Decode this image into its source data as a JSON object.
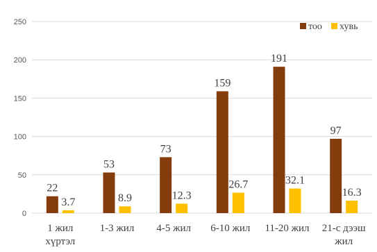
{
  "chart_data": {
    "type": "bar",
    "title": "",
    "xlabel": "",
    "ylabel": "",
    "ylim": [
      0,
      250
    ],
    "yticks": [
      0,
      50,
      100,
      150,
      200,
      250
    ],
    "grid": true,
    "legend_position": "top-right",
    "categories": [
      [
        "1 жил",
        "хүртэл"
      ],
      [
        "1-3 жил"
      ],
      [
        "4-5 жил"
      ],
      [
        "6-10 жил"
      ],
      [
        "11-20 жил"
      ],
      [
        "21-с дээш",
        "жил"
      ]
    ],
    "series": [
      {
        "name": "тоо",
        "color": "#843C0C",
        "values": [
          22,
          53,
          73,
          159,
          191,
          97
        ]
      },
      {
        "name": "хувь",
        "color": "#FFC000",
        "values": [
          3.7,
          8.9,
          12.3,
          26.7,
          32.1,
          16.3
        ]
      }
    ]
  }
}
